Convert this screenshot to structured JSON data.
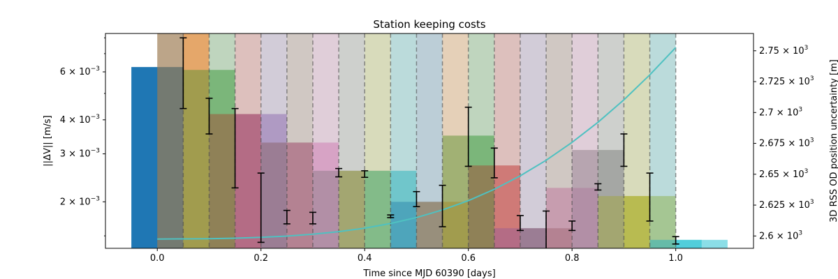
{
  "chart_data": {
    "type": "bar",
    "title": "Station keeping costs",
    "xlabel": "Time since MJD 60390 [days]",
    "ylabel_left": "||ΔV|| [m/s]",
    "ylabel_right": "3D RSS OD position uncertainty [m]",
    "xlim": [
      -0.1,
      1.15
    ],
    "ylim_left": [
      0.00135,
      0.0083
    ],
    "y_left_scale": "log",
    "ylim_right": [
      2590,
      2764
    ],
    "x_ticks": [
      0.0,
      0.2,
      0.4,
      0.6,
      0.8,
      1.0
    ],
    "x_tick_labels": [
      "0.0",
      "0.2",
      "0.4",
      "0.6",
      "0.8",
      "1.0"
    ],
    "y_left_ticks": [
      0.002,
      0.003,
      0.004,
      0.006
    ],
    "y_left_tick_mantissas": [
      "2",
      "3",
      "4",
      "6"
    ],
    "y_left_tick_exponent": "−3",
    "y_right_ticks": [
      2600,
      2625,
      2650,
      2675,
      2700,
      2725,
      2750
    ],
    "y_right_tick_mantissas": [
      "2.6",
      "2.625",
      "2.65",
      "2.675",
      "2.7",
      "2.725",
      "2.75"
    ],
    "y_right_tick_exponent": "3",
    "bar_width": 0.1,
    "bar_alpha_background": 0.5,
    "bars": [
      {
        "x": 0.0,
        "value": 0.00625,
        "color": "#1f77b4"
      },
      {
        "x": 0.05,
        "value": 0.0083,
        "color": "#ff7f0e"
      },
      {
        "x": 0.1,
        "value": 0.0061,
        "color": "#2ca02c"
      },
      {
        "x": 0.15,
        "value": 0.0042,
        "color": "#d62728"
      },
      {
        "x": 0.2,
        "value": 0.0042,
        "color": "#9467bd"
      },
      {
        "x": 0.25,
        "value": 0.0033,
        "color": "#8c564b"
      },
      {
        "x": 0.3,
        "value": 0.0033,
        "color": "#e377c2"
      },
      {
        "x": 0.35,
        "value": 0.0026,
        "color": "#7f7f7f"
      },
      {
        "x": 0.4,
        "value": 0.0026,
        "color": "#bcbd22"
      },
      {
        "x": 0.45,
        "value": 0.0026,
        "color": "#17becf"
      },
      {
        "x": 0.5,
        "value": 0.002,
        "color": "#1f77b4"
      },
      {
        "x": 0.55,
        "value": 0.002,
        "color": "#ff7f0e"
      },
      {
        "x": 0.6,
        "value": 0.0035,
        "color": "#2ca02c"
      },
      {
        "x": 0.65,
        "value": 0.00272,
        "color": "#d62728"
      },
      {
        "x": 0.7,
        "value": 0.0016,
        "color": "#9467bd"
      },
      {
        "x": 0.75,
        "value": 0.0016,
        "color": "#8c564b"
      },
      {
        "x": 0.8,
        "value": 0.00225,
        "color": "#e377c2"
      },
      {
        "x": 0.85,
        "value": 0.0031,
        "color": "#7f7f7f"
      },
      {
        "x": 0.9,
        "value": 0.0021,
        "color": "#bcbd22"
      },
      {
        "x": 0.95,
        "value": 0.0021,
        "color": "#bcbd22"
      },
      {
        "x": 1.0,
        "value": 0.00145,
        "color": "#17becf"
      },
      {
        "x": 1.05,
        "value": 0.00145,
        "color": "#17becf"
      }
    ],
    "shaded_spans": [
      {
        "x0": 0.0,
        "x1": 0.05,
        "color": "#1f77b4",
        "alpha": 0.22
      },
      {
        "x0": 0.05,
        "x1": 0.1,
        "color": "#ff7f0e",
        "alpha": 0.22
      },
      {
        "x0": 0.1,
        "x1": 0.15,
        "color": "#2ca02c",
        "alpha": 0.22
      },
      {
        "x0": 0.15,
        "x1": 0.2,
        "color": "#d62728",
        "alpha": 0.22
      },
      {
        "x0": 0.2,
        "x1": 0.25,
        "color": "#9467bd",
        "alpha": 0.22
      },
      {
        "x0": 0.25,
        "x1": 0.3,
        "color": "#8c564b",
        "alpha": 0.22
      },
      {
        "x0": 0.3,
        "x1": 0.35,
        "color": "#e377c2",
        "alpha": 0.22
      },
      {
        "x0": 0.35,
        "x1": 0.4,
        "color": "#7f7f7f",
        "alpha": 0.22
      },
      {
        "x0": 0.4,
        "x1": 0.45,
        "color": "#bcbd22",
        "alpha": 0.22
      },
      {
        "x0": 0.45,
        "x1": 0.5,
        "color": "#17becf",
        "alpha": 0.22
      },
      {
        "x0": 0.5,
        "x1": 0.55,
        "color": "#1f77b4",
        "alpha": 0.22
      },
      {
        "x0": 0.55,
        "x1": 0.6,
        "color": "#ff7f0e",
        "alpha": 0.22
      },
      {
        "x0": 0.6,
        "x1": 0.65,
        "color": "#2ca02c",
        "alpha": 0.22
      },
      {
        "x0": 0.65,
        "x1": 0.7,
        "color": "#d62728",
        "alpha": 0.22
      },
      {
        "x0": 0.7,
        "x1": 0.75,
        "color": "#9467bd",
        "alpha": 0.22
      },
      {
        "x0": 0.75,
        "x1": 0.8,
        "color": "#8c564b",
        "alpha": 0.22
      },
      {
        "x0": 0.8,
        "x1": 0.85,
        "color": "#e377c2",
        "alpha": 0.22
      },
      {
        "x0": 0.85,
        "x1": 0.9,
        "color": "#7f7f7f",
        "alpha": 0.22
      },
      {
        "x0": 0.9,
        "x1": 0.95,
        "color": "#bcbd22",
        "alpha": 0.22
      },
      {
        "x0": 0.95,
        "x1": 1.0,
        "color": "#17becf",
        "alpha": 0.22
      }
    ],
    "vlines_dashed": [
      0.05,
      0.1,
      0.15,
      0.2,
      0.25,
      0.3,
      0.35,
      0.4,
      0.45,
      0.5,
      0.55,
      0.6,
      0.65,
      0.7,
      0.75,
      0.8,
      0.85,
      0.9,
      0.95,
      1.0
    ],
    "error_bars": [
      {
        "x": 0.05,
        "y": 0.0057,
        "low": 0.0044,
        "high": 0.008
      },
      {
        "x": 0.1,
        "y": 0.0041,
        "low": 0.00355,
        "high": 0.0048
      },
      {
        "x": 0.15,
        "y": 0.0031,
        "low": 0.00225,
        "high": 0.0044
      },
      {
        "x": 0.2,
        "y": 0.0018,
        "low": 0.00142,
        "high": 0.00255
      },
      {
        "x": 0.25,
        "y": 0.00175,
        "low": 0.00166,
        "high": 0.00186
      },
      {
        "x": 0.3,
        "y": 0.00173,
        "low": 0.00166,
        "high": 0.00183
      },
      {
        "x": 0.35,
        "y": 0.00256,
        "low": 0.00247,
        "high": 0.00265
      },
      {
        "x": 0.4,
        "y": 0.00253,
        "low": 0.00246,
        "high": 0.0026
      },
      {
        "x": 0.45,
        "y": 0.00177,
        "low": 0.00175,
        "high": 0.00179
      },
      {
        "x": 0.5,
        "y": 0.00205,
        "low": 0.00192,
        "high": 0.00218
      },
      {
        "x": 0.55,
        "y": 0.0019,
        "low": 0.00162,
        "high": 0.0023
      },
      {
        "x": 0.6,
        "y": 0.0035,
        "low": 0.0027,
        "high": 0.00445
      },
      {
        "x": 0.65,
        "y": 0.0028,
        "low": 0.00245,
        "high": 0.00315
      },
      {
        "x": 0.7,
        "y": 0.00168,
        "low": 0.00157,
        "high": 0.00178
      },
      {
        "x": 0.75,
        "y": 0.00155,
        "low": 0.00132,
        "high": 0.00185
      },
      {
        "x": 0.8,
        "y": 0.00163,
        "low": 0.00157,
        "high": 0.0017
      },
      {
        "x": 0.85,
        "y": 0.00227,
        "low": 0.00221,
        "high": 0.00233
      },
      {
        "x": 0.9,
        "y": 0.0031,
        "low": 0.0027,
        "high": 0.00355
      },
      {
        "x": 0.95,
        "y": 0.0021,
        "low": 0.0017,
        "high": 0.00255
      },
      {
        "x": 1.0,
        "y": 0.00144,
        "low": 0.0014,
        "high": 0.00149
      }
    ],
    "uncertainty_curve": {
      "axis": "right",
      "color": "#4fc1c1",
      "x": [
        0.0,
        0.05,
        0.1,
        0.15,
        0.2,
        0.25,
        0.3,
        0.35,
        0.4,
        0.45,
        0.5,
        0.55,
        0.6,
        0.65,
        0.7,
        0.75,
        0.8,
        0.85,
        0.9,
        0.95,
        1.0
      ],
      "y": [
        2597.5,
        2597.6,
        2597.8,
        2598.2,
        2598.9,
        2599.9,
        2601.4,
        2603.5,
        2606.3,
        2610.1,
        2614.9,
        2621.1,
        2628.6,
        2637.8,
        2648.7,
        2661.3,
        2675.8,
        2692.1,
        2710.3,
        2730.5,
        2752.6
      ]
    },
    "grid": false,
    "legend": "none"
  }
}
